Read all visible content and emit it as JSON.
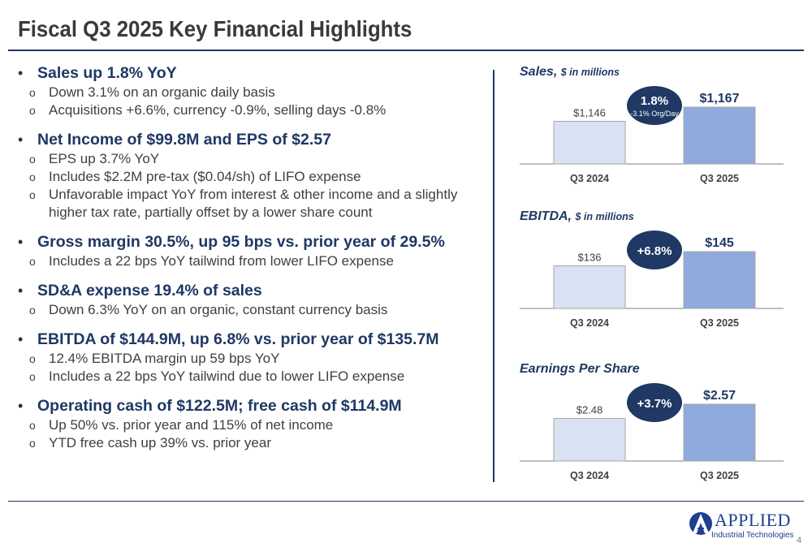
{
  "title": "Fiscal Q3 2025 Key Financial Highlights",
  "bullets": [
    {
      "heading": "Sales up 1.8% YoY",
      "subs": [
        "Down 3.1% on an organic daily basis",
        "Acquisitions +6.6%, currency -0.9%, selling days -0.8%"
      ]
    },
    {
      "heading": "Net Income of $99.8M and EPS of $2.57",
      "subs": [
        "EPS up 3.7% YoY",
        "Includes $2.2M pre-tax ($0.04/sh) of LIFO expense",
        "Unfavorable impact YoY from interest & other income and a slightly higher tax rate, partially offset by a lower share count"
      ]
    },
    {
      "heading": "Gross margin 30.5%, up 95 bps vs. prior year of 29.5%",
      "subs": [
        "Includes a 22 bps YoY tailwind from lower LIFO expense"
      ]
    },
    {
      "heading": "SD&A expense 19.4% of sales",
      "subs": [
        "Down 6.3% YoY on an organic, constant currency basis"
      ]
    },
    {
      "heading": "EBITDA of $144.9M, up 6.8% vs. prior year of $135.7M",
      "subs": [
        "12.4% EBITDA margin up 59 bps YoY",
        "Includes a 22 bps YoY tailwind due to lower LIFO expense"
      ]
    },
    {
      "heading": "Operating cash of $122.5M; free cash of $114.9M",
      "subs": [
        "Up 50% vs. prior year and 115% of net income",
        "YTD free cash up 39% vs. prior year"
      ]
    }
  ],
  "bullet_glyph": "•",
  "sub_glyph": "o",
  "colors": {
    "navy": "#1f3864",
    "bar_prior": "#d9e2f3",
    "bar_current": "#8faadc",
    "bar_border": "#a6a6a6"
  },
  "chart_data": [
    {
      "type": "bar",
      "title": "Sales,",
      "title_unit": "$ in millions",
      "categories": [
        "Q3 2024",
        "Q3 2025"
      ],
      "values": [
        1146,
        1167
      ],
      "labels": [
        "$1,146",
        "$1,167"
      ],
      "badge": "1.8%",
      "badge_sub": "-3.1% Org/Day"
    },
    {
      "type": "bar",
      "title": "EBITDA,",
      "title_unit": "$ in millions",
      "categories": [
        "Q3 2024",
        "Q3 2025"
      ],
      "values": [
        136,
        145
      ],
      "labels": [
        "$136",
        "$145"
      ],
      "badge": "+6.8%",
      "badge_sub": ""
    },
    {
      "type": "bar",
      "title": "Earnings Per Share",
      "title_unit": "",
      "categories": [
        "Q3 2024",
        "Q3 2025"
      ],
      "values": [
        2.48,
        2.57
      ],
      "labels": [
        "$2.48",
        "$2.57"
      ],
      "badge": "+3.7%",
      "badge_sub": ""
    }
  ],
  "logo": {
    "name": "APPLIED",
    "sub": "Industrial Technologies"
  },
  "page_number": "4"
}
